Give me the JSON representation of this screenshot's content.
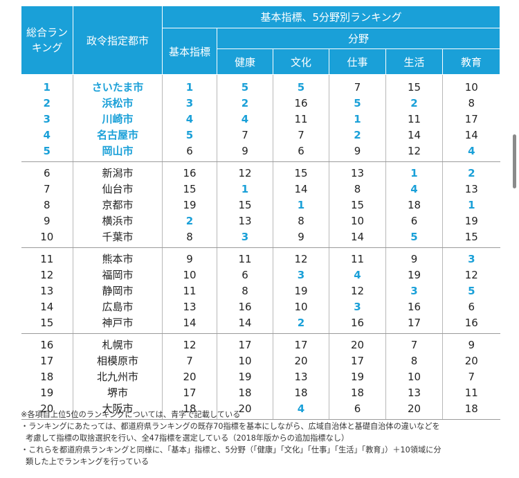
{
  "header": {
    "overall": "総合ランキング",
    "city": "政令指定都市",
    "group": "基本指標、5分野別ランキング",
    "basic": "基本指標",
    "fields": "分野",
    "health": "健康",
    "culture": "文化",
    "work": "仕事",
    "life": "生活",
    "education": "教育"
  },
  "highlight_color": "#1aa0d8",
  "rows": [
    {
      "rank": "1",
      "city": "さいたま市",
      "basic": "1",
      "health": "5",
      "culture": "5",
      "work": "7",
      "life": "15",
      "edu": "10"
    },
    {
      "rank": "2",
      "city": "浜松市",
      "basic": "3",
      "health": "2",
      "culture": "16",
      "work": "5",
      "life": "2",
      "edu": "8"
    },
    {
      "rank": "3",
      "city": "川崎市",
      "basic": "4",
      "health": "4",
      "culture": "11",
      "work": "1",
      "life": "11",
      "edu": "17"
    },
    {
      "rank": "4",
      "city": "名古屋市",
      "basic": "5",
      "health": "7",
      "culture": "7",
      "work": "2",
      "life": "14",
      "edu": "14"
    },
    {
      "rank": "5",
      "city": "岡山市",
      "basic": "6",
      "health": "9",
      "culture": "6",
      "work": "9",
      "life": "12",
      "edu": "4"
    },
    {
      "rank": "6",
      "city": "新潟市",
      "basic": "16",
      "health": "12",
      "culture": "15",
      "work": "13",
      "life": "1",
      "edu": "2"
    },
    {
      "rank": "7",
      "city": "仙台市",
      "basic": "15",
      "health": "1",
      "culture": "14",
      "work": "8",
      "life": "4",
      "edu": "13"
    },
    {
      "rank": "8",
      "city": "京都市",
      "basic": "19",
      "health": "15",
      "culture": "1",
      "work": "15",
      "life": "18",
      "edu": "1"
    },
    {
      "rank": "9",
      "city": "横浜市",
      "basic": "2",
      "health": "13",
      "culture": "8",
      "work": "10",
      "life": "6",
      "edu": "19"
    },
    {
      "rank": "10",
      "city": "千葉市",
      "basic": "8",
      "health": "3",
      "culture": "9",
      "work": "14",
      "life": "5",
      "edu": "15"
    },
    {
      "rank": "11",
      "city": "熊本市",
      "basic": "9",
      "health": "11",
      "culture": "12",
      "work": "11",
      "life": "9",
      "edu": "3"
    },
    {
      "rank": "12",
      "city": "福岡市",
      "basic": "10",
      "health": "6",
      "culture": "3",
      "work": "4",
      "life": "19",
      "edu": "12"
    },
    {
      "rank": "13",
      "city": "静岡市",
      "basic": "11",
      "health": "8",
      "culture": "19",
      "work": "12",
      "life": "3",
      "edu": "5"
    },
    {
      "rank": "14",
      "city": "広島市",
      "basic": "13",
      "health": "16",
      "culture": "10",
      "work": "3",
      "life": "16",
      "edu": "6"
    },
    {
      "rank": "15",
      "city": "神戸市",
      "basic": "14",
      "health": "14",
      "culture": "2",
      "work": "16",
      "life": "17",
      "edu": "16"
    },
    {
      "rank": "16",
      "city": "札幌市",
      "basic": "12",
      "health": "17",
      "culture": "17",
      "work": "20",
      "life": "7",
      "edu": "9"
    },
    {
      "rank": "17",
      "city": "相模原市",
      "basic": "7",
      "health": "10",
      "culture": "20",
      "work": "17",
      "life": "8",
      "edu": "20"
    },
    {
      "rank": "18",
      "city": "北九州市",
      "basic": "20",
      "health": "19",
      "culture": "13",
      "work": "19",
      "life": "10",
      "edu": "7"
    },
    {
      "rank": "19",
      "city": "堺市",
      "basic": "17",
      "health": "18",
      "culture": "18",
      "work": "18",
      "life": "13",
      "edu": "11"
    },
    {
      "rank": "20",
      "city": "大阪市",
      "basic": "18",
      "health": "20",
      "culture": "4",
      "work": "6",
      "life": "20",
      "edu": "18"
    }
  ],
  "notes": [
    "※各項目上位5位のランキングについては、青字で記載している",
    "・ランキングにあたっては、都道府県ランキングの既存70指標を基本にしながら、広域自治体と基礎自治体の違いなどを",
    "考慮して指標の取捨選択を行い、全47指標を選定している（2018年版からの追加指標なし）",
    "・これらを都道府県ランキングと同様に、「基本」指標と、5分野（「健康」「文化」「仕事」「生活」「教育」）＋10領域に分",
    "類した上でランキングを行っている"
  ]
}
